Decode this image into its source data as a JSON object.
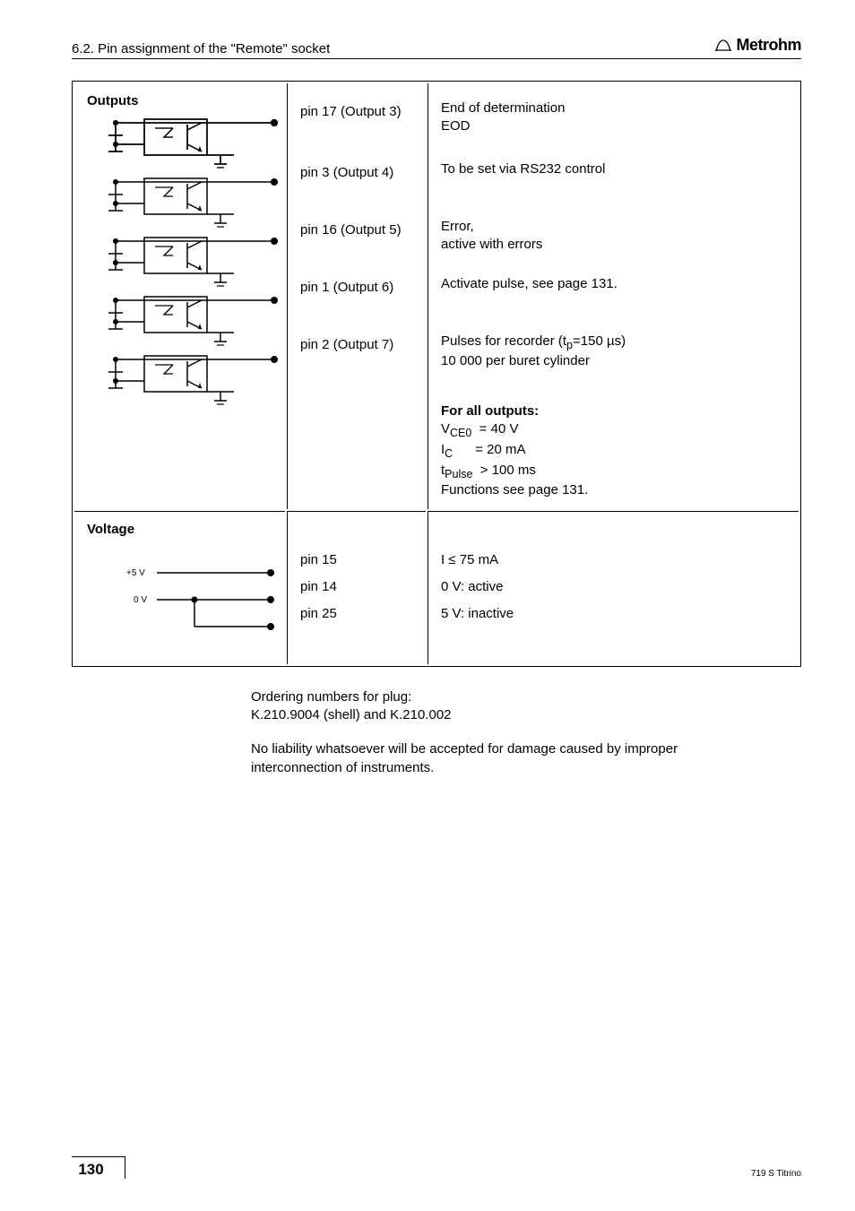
{
  "header": {
    "section": "6.2. Pin assignment of the \"Remote\" socket",
    "brand": "Metrohm"
  },
  "outputs": {
    "title": "Outputs",
    "rows": [
      {
        "pin": "pin 17 (Output 3)",
        "desc_lines": [
          "End of determination",
          "EOD"
        ]
      },
      {
        "pin": "pin 3 (Output 4)",
        "desc_lines": [
          "To be set via RS232 control"
        ]
      },
      {
        "pin": "pin 16 (Output 5)",
        "desc_lines": [
          "Error,",
          "active with errors"
        ]
      },
      {
        "pin": "pin 1 (Output 6)",
        "desc_lines": [
          "Activate pulse, see page 131."
        ]
      },
      {
        "pin": "pin 2 (Output 7)",
        "desc_lines": [
          "Pulses for recorder (t<sub>p</sub>=150 µs)",
          "10 000 per buret cylinder"
        ]
      }
    ],
    "spec": {
      "title": "For all outputs:",
      "lines": [
        "V<sub>CE0</sub>&nbsp;&nbsp;= 40 V",
        "I<sub>C</sub>&nbsp;&nbsp;&nbsp;&nbsp;&nbsp;&nbsp;= 20 mA",
        "t<sub>Pulse</sub>&nbsp;&nbsp;> 100 ms",
        "Functions see page 131."
      ]
    }
  },
  "voltage": {
    "title": "Voltage",
    "labels": {
      "plus5v": "+5 V",
      "zero": "0 V"
    },
    "pins": [
      "pin 15",
      "pin 14",
      "pin 25"
    ],
    "current": "I ≤ 75 mA",
    "states": [
      "0 V: active",
      "5 V: inactive"
    ]
  },
  "body": {
    "p1": "Ordering numbers for plug:",
    "p2": "K.210.9004 (shell) and K.210.002",
    "p3": "No liability whatsoever will be accepted for damage caused by improper interconnection of instruments."
  },
  "footer": {
    "page": "130",
    "right": "719 S Titrino"
  },
  "colors": {
    "line": "#000000",
    "bg": "#ffffff"
  }
}
